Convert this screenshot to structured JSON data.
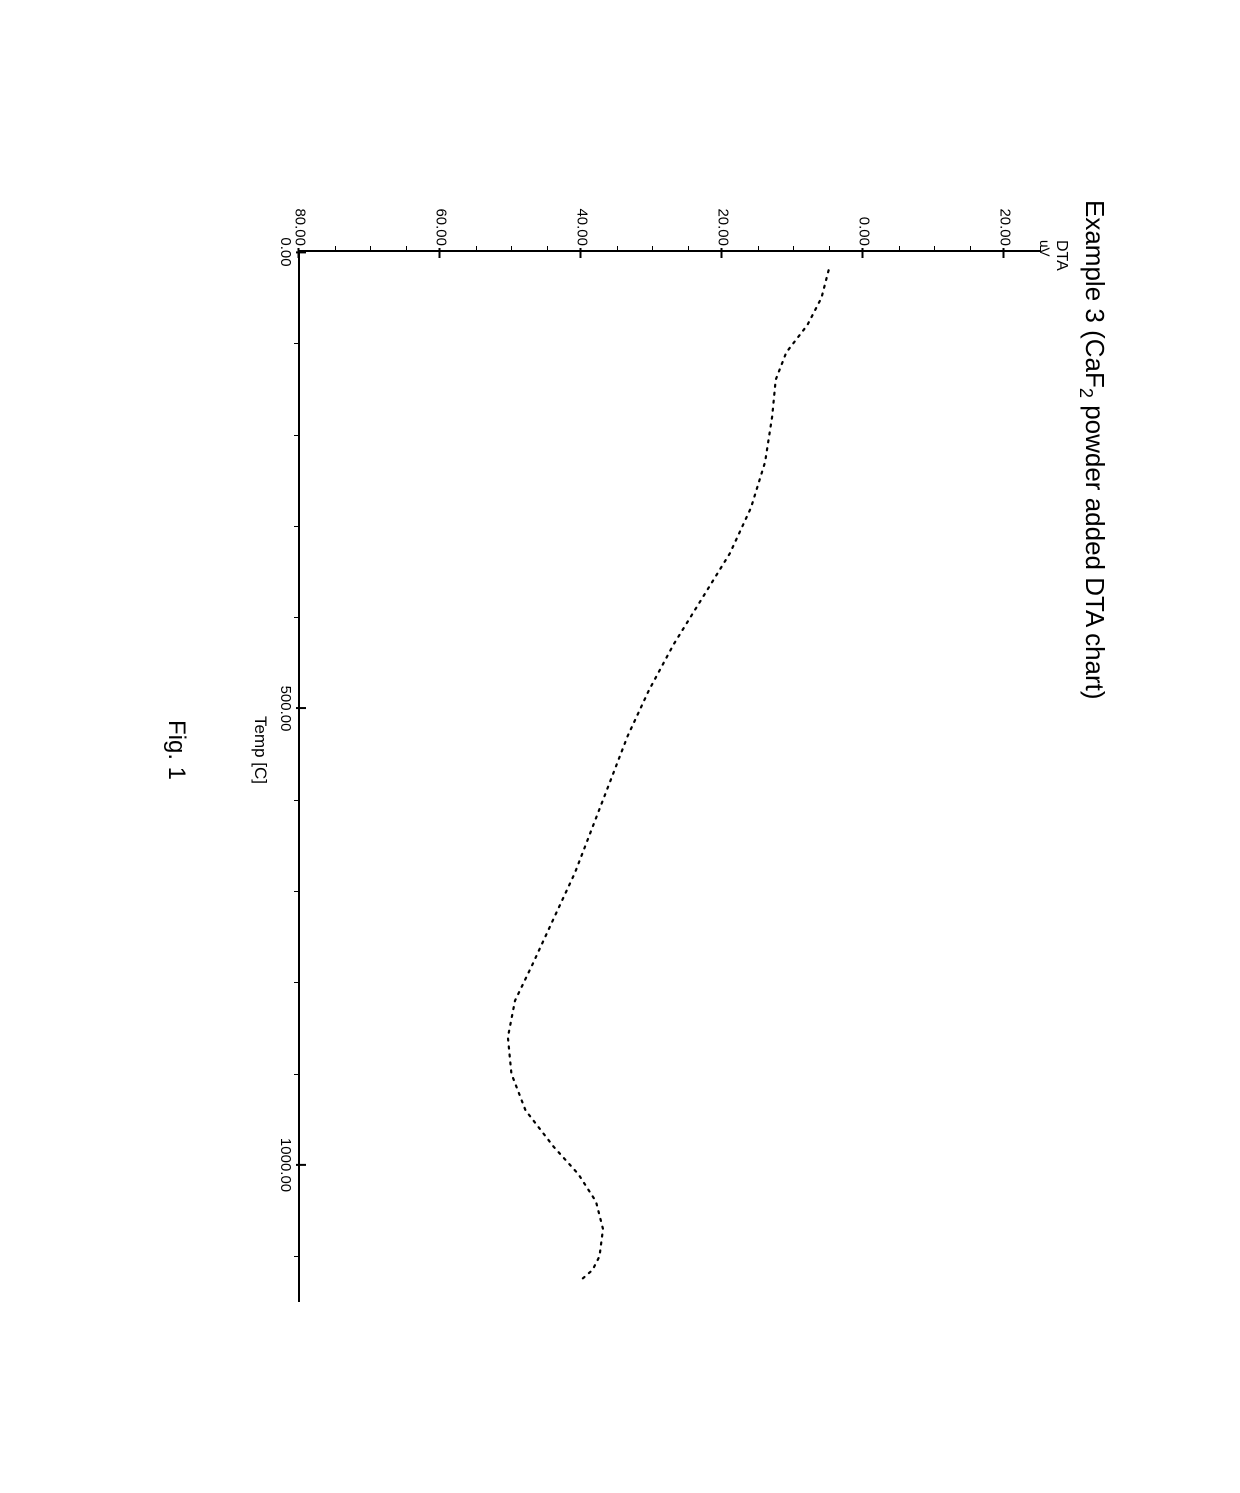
{
  "figure": {
    "title_prefix": "Example 3 (CaF",
    "title_sub": "2",
    "title_suffix": " powder added DTA chart)",
    "title_fontsize": 26,
    "ylabel_line1": "DTA",
    "ylabel_line2": "uV",
    "ylabel_fontsize": 16,
    "xlabel": "Temp [C]",
    "xlabel_fontsize": 17,
    "caption": "Fig. 1",
    "caption_fontsize": 24,
    "background_color": "#ffffff",
    "axis_color": "#000000",
    "curve_color": "#000000",
    "curve_style": "dotted",
    "curve_width": 2.2,
    "font_family": "Arial"
  },
  "axes": {
    "xlim": [
      0,
      1150
    ],
    "ylim": [
      -80,
      25
    ],
    "xticks_major": [
      {
        "val": 0,
        "label": "0.00"
      },
      {
        "val": 500,
        "label": "500.00"
      },
      {
        "val": 1000,
        "label": "1000.00"
      }
    ],
    "xticks_minor_step": 100,
    "yticks_major": [
      {
        "val": 20,
        "label": "20.00"
      },
      {
        "val": 0,
        "label": "0.00"
      },
      {
        "val": -20,
        "label": "20.00"
      },
      {
        "val": -40,
        "label": "40.00"
      },
      {
        "val": -60,
        "label": "60.00"
      },
      {
        "val": -80,
        "label": "80.00"
      }
    ],
    "yticks_minor_step": 5
  },
  "series": {
    "type": "line",
    "points": [
      {
        "x": 20,
        "y": -5
      },
      {
        "x": 50,
        "y": -6
      },
      {
        "x": 80,
        "y": -8
      },
      {
        "x": 110,
        "y": -11
      },
      {
        "x": 140,
        "y": -12.5
      },
      {
        "x": 180,
        "y": -13
      },
      {
        "x": 230,
        "y": -14
      },
      {
        "x": 280,
        "y": -16
      },
      {
        "x": 330,
        "y": -19
      },
      {
        "x": 380,
        "y": -23
      },
      {
        "x": 430,
        "y": -27
      },
      {
        "x": 480,
        "y": -30.5
      },
      {
        "x": 530,
        "y": -33.5
      },
      {
        "x": 580,
        "y": -36
      },
      {
        "x": 630,
        "y": -38.5
      },
      {
        "x": 680,
        "y": -41
      },
      {
        "x": 730,
        "y": -44
      },
      {
        "x": 780,
        "y": -47
      },
      {
        "x": 820,
        "y": -49.5
      },
      {
        "x": 860,
        "y": -50.5
      },
      {
        "x": 900,
        "y": -50
      },
      {
        "x": 940,
        "y": -48
      },
      {
        "x": 980,
        "y": -44
      },
      {
        "x": 1010,
        "y": -40.5
      },
      {
        "x": 1040,
        "y": -38
      },
      {
        "x": 1070,
        "y": -37
      },
      {
        "x": 1100,
        "y": -37.5
      },
      {
        "x": 1115,
        "y": -38.5
      },
      {
        "x": 1125,
        "y": -40
      }
    ]
  }
}
